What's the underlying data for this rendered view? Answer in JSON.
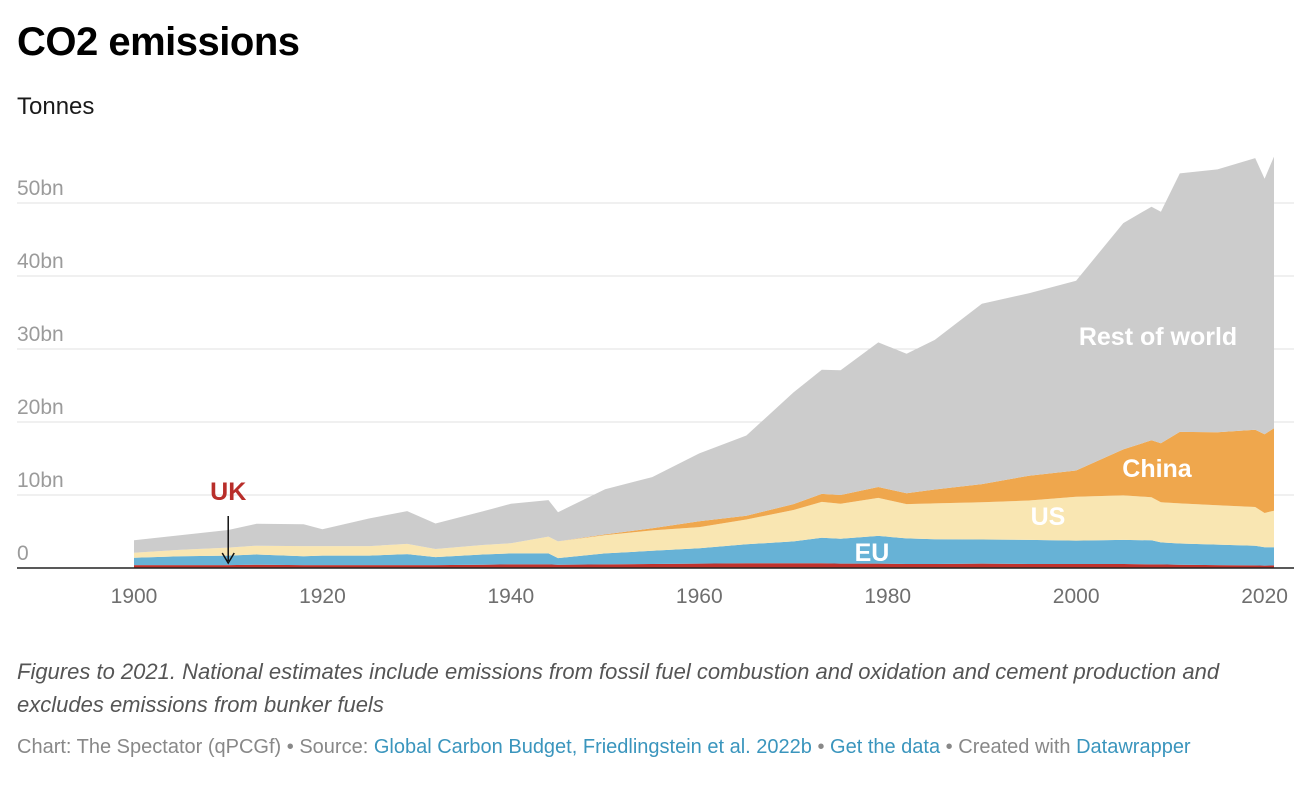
{
  "header": {
    "title": "CO2 emissions",
    "subtitle": "Tonnes"
  },
  "notes": "Figures to 2021. National estimates include emissions from fossil fuel combustion and oxidation and cement production and excludes emissions from bunker fuels",
  "footer": {
    "chart_credit": "Chart: The Spectator (qPCGf)",
    "source_prefix": "Source:",
    "source_link": "Global Carbon Budget, Friedlingstein et al. 2022b",
    "get_data": "Get the data",
    "created_with": "Created with",
    "datawrapper": "Datawrapper",
    "separator": "•"
  },
  "colors": {
    "uk": "#c0322d",
    "eu": "#67b2d6",
    "us": "#f9e6b2",
    "china": "#efa74d",
    "rest_of_world": "#cccccc",
    "uk_label": "#b82e2a",
    "gridline": "#e0e0e0",
    "baseline": "#222222"
  },
  "chart_data": {
    "type": "area",
    "stacked": true,
    "title": "CO2 emissions",
    "subtitle": "Tonnes",
    "xlabel": "",
    "ylabel": "",
    "xlim": [
      1900,
      2021
    ],
    "ylim": [
      0,
      55
    ],
    "y_unit": "bn tonnes",
    "y_ticks": [
      0,
      10,
      20,
      30,
      40,
      50
    ],
    "y_tick_labels": [
      "0",
      "10bn",
      "20bn",
      "30bn",
      "40bn",
      "50bn"
    ],
    "x_ticks": [
      1900,
      1920,
      1940,
      1960,
      1980,
      2000,
      2020
    ],
    "x_tick_labels": [
      "1900",
      "1920",
      "1940",
      "1960",
      "1980",
      "2000",
      "2020"
    ],
    "grid": true,
    "legend": "direct labels",
    "series_points": [
      "UK",
      "EU",
      "US",
      "China",
      "Rest of world"
    ],
    "cumulative_years": [
      1900,
      1905,
      1910,
      1913,
      1918,
      1920,
      1925,
      1929,
      1932,
      1937,
      1940,
      1944,
      1945,
      1950,
      1955,
      1960,
      1965,
      1970,
      1973,
      1975,
      1979,
      1982,
      1985,
      1990,
      1995,
      2000,
      2005,
      2008,
      2009,
      2011,
      2015,
      2019,
      2020,
      2021
    ],
    "series": [
      {
        "name": "UK",
        "values": [
          0.4,
          0.4,
          0.4,
          0.45,
          0.4,
          0.4,
          0.4,
          0.4,
          0.4,
          0.45,
          0.5,
          0.5,
          0.45,
          0.5,
          0.55,
          0.6,
          0.65,
          0.65,
          0.65,
          0.6,
          0.6,
          0.55,
          0.55,
          0.6,
          0.55,
          0.55,
          0.55,
          0.5,
          0.5,
          0.45,
          0.4,
          0.35,
          0.33,
          0.35
        ]
      },
      {
        "name": "EU",
        "values": [
          1.0,
          1.2,
          1.3,
          1.4,
          1.2,
          1.3,
          1.3,
          1.5,
          1.1,
          1.4,
          1.5,
          1.5,
          0.9,
          1.5,
          1.8,
          2.1,
          2.6,
          3.0,
          3.5,
          3.4,
          3.8,
          3.5,
          3.4,
          3.3,
          3.3,
          3.2,
          3.3,
          3.3,
          3.0,
          2.9,
          2.8,
          2.7,
          2.5,
          2.5
        ]
      },
      {
        "name": "US",
        "values": [
          0.7,
          0.9,
          1.1,
          1.2,
          1.4,
          1.3,
          1.3,
          1.4,
          1.1,
          1.3,
          1.4,
          2.3,
          2.3,
          2.5,
          2.8,
          2.9,
          3.4,
          4.3,
          4.9,
          4.8,
          5.2,
          4.7,
          4.9,
          5.1,
          5.4,
          6.0,
          6.1,
          5.9,
          5.5,
          5.5,
          5.4,
          5.3,
          4.7,
          5.0
        ]
      },
      {
        "name": "China",
        "values": [
          0.0,
          0.0,
          0.0,
          0.0,
          0.0,
          0.0,
          0.0,
          0.0,
          0.0,
          0.0,
          0.0,
          0.0,
          0.0,
          0.1,
          0.3,
          0.8,
          0.5,
          0.8,
          1.1,
          1.2,
          1.5,
          1.5,
          1.9,
          2.5,
          3.4,
          3.6,
          6.3,
          7.8,
          8.1,
          9.8,
          10.0,
          10.6,
          10.8,
          11.3
        ]
      },
      {
        "name": "Rest of world",
        "values": [
          1.7,
          2.0,
          2.4,
          3.0,
          3.0,
          2.3,
          3.8,
          4.5,
          3.5,
          4.6,
          5.4,
          5.0,
          4.0,
          6.2,
          7.0,
          9.3,
          11.0,
          15.3,
          17.0,
          17.1,
          19.8,
          19.1,
          20.5,
          24.7,
          25.0,
          26.0,
          31.0,
          32.0,
          31.7,
          35.4,
          36.0,
          37.2,
          35.0,
          37.2
        ]
      }
    ],
    "series_labels": [
      "Rest of world",
      "China",
      "US",
      "EU"
    ],
    "annotation": {
      "text": "UK",
      "x": 1910
    }
  }
}
